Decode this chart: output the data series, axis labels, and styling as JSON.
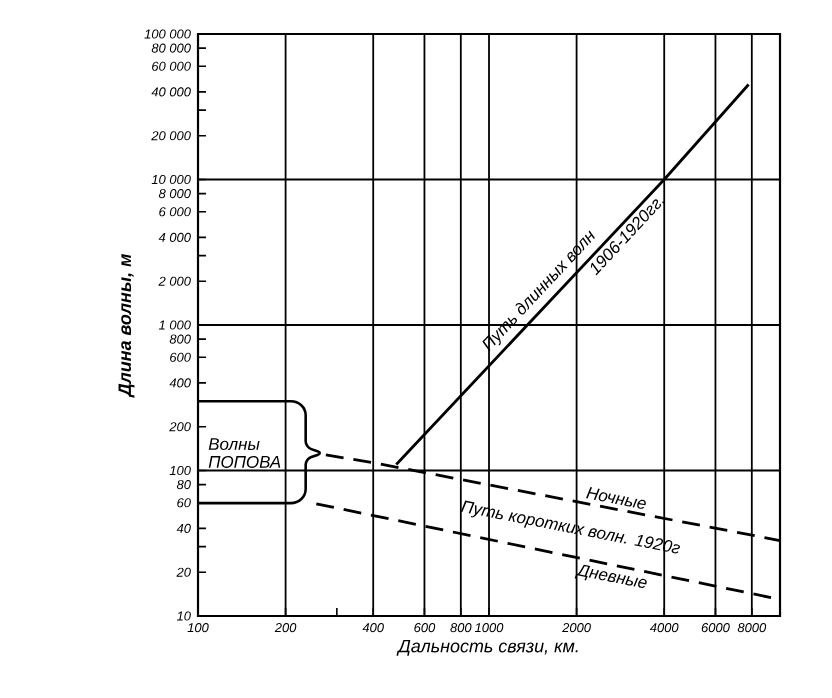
{
  "chart_data": {
    "type": "line",
    "log": "xy",
    "grid": "x",
    "xlabel": "Дальность связи, км.",
    "ylabel": "Длина волны, м",
    "xlim": [
      100,
      10000
    ],
    "ylim": [
      10,
      100000
    ],
    "xticks": [
      100,
      200,
      {
        "value": 300,
        "label": null
      },
      400,
      600,
      800,
      1000,
      2000,
      4000,
      6000,
      8000
    ],
    "yticks": [
      10,
      20,
      {
        "value": 30,
        "label": null
      },
      40,
      60,
      80,
      100,
      200,
      {
        "value": 300,
        "label": null
      },
      400,
      600,
      800,
      {
        "value": 1000,
        "label": "1 000"
      },
      {
        "value": 2000,
        "label": "2 000"
      },
      {
        "value": 3000,
        "label": null
      },
      {
        "value": 4000,
        "label": "4 000"
      },
      {
        "value": 6000,
        "label": "6 000"
      },
      {
        "value": 8000,
        "label": "8 000"
      },
      {
        "value": 10000,
        "label": "10 000"
      },
      {
        "value": 20000,
        "label": "20 000"
      },
      {
        "value": 30000,
        "label": null
      },
      {
        "value": 40000,
        "label": "40 000"
      },
      {
        "value": 60000,
        "label": "60 000"
      },
      {
        "value": 80000,
        "label": "80 000"
      },
      {
        "value": 100000,
        "label": "100 000"
      }
    ],
    "series": [
      {
        "color": "#000000",
        "line_style": "solid",
        "x": [
          480,
          4000,
          7800
        ],
        "values": [
          110,
          10000,
          45000
        ]
      },
      {
        "color": "#000000",
        "line_style": "dashed",
        "x": [
          275,
          400,
          10000
        ],
        "values": [
          128,
          113,
          33
        ]
      },
      {
        "color": "#000000",
        "line_style": "dashed",
        "x": [
          255,
          10000
        ],
        "values": [
          59,
          13
        ]
      }
    ],
    "ref_lines": [
      {
        "axis": "y",
        "value": 100,
        "color": "#000000"
      },
      {
        "axis": "y",
        "value": 1000,
        "color": "#000000"
      },
      {
        "axis": "y",
        "value": 10000,
        "color": "#000000"
      }
    ],
    "annotations": [
      {
        "text": "Путь длинных волн",
        "x": 1600,
        "y": 1500
      },
      {
        "text": "1906-1920гг.",
        "x": 2800,
        "y": 4700
      },
      {
        "text": "Ночные",
        "x": 2700,
        "y": 55
      },
      {
        "text": "Дневные",
        "x": 2700,
        "y": 22
      },
      "Путь коротких волн. 1920г",
      "Волны ПОПОВА"
    ]
  }
}
